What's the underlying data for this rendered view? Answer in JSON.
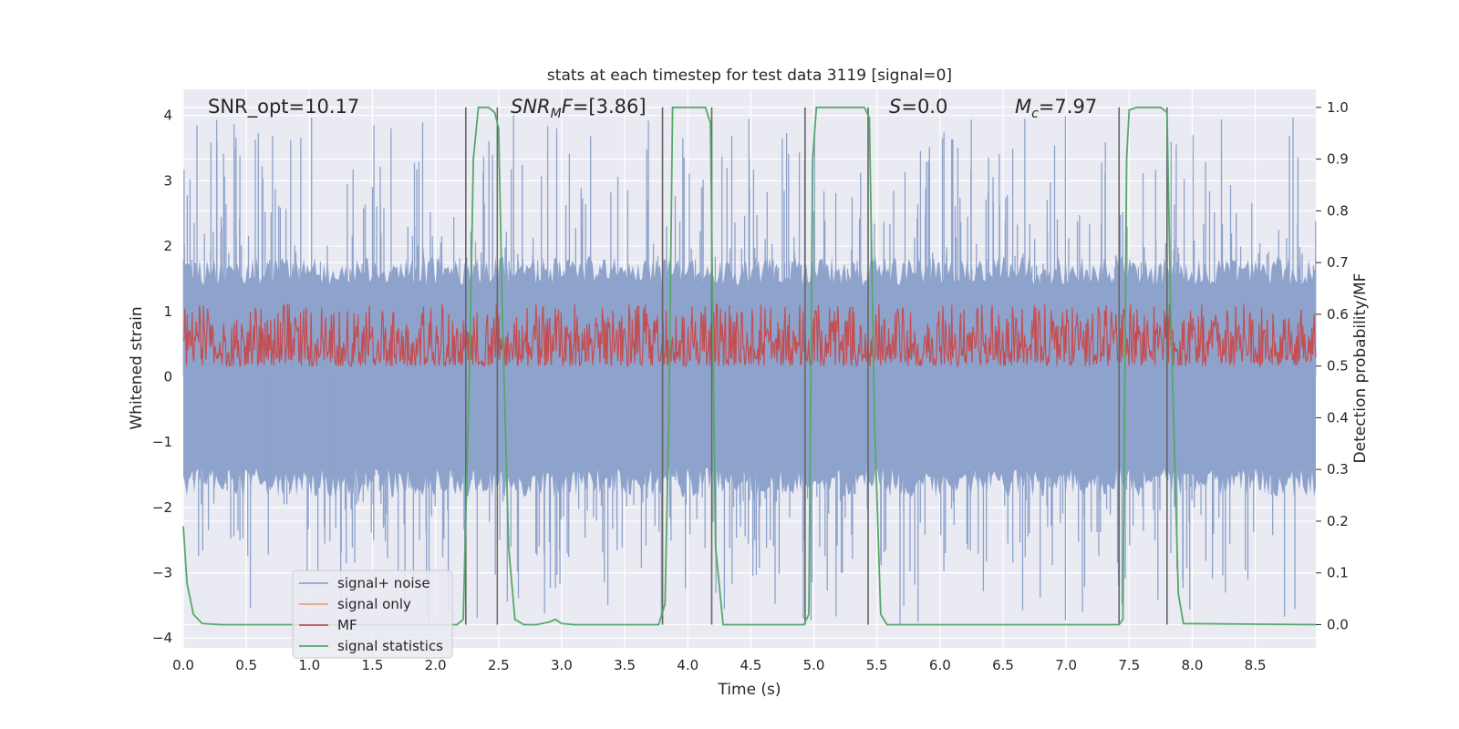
{
  "chart_data": {
    "type": "line",
    "title": "stats at each timestep for test data 3119 [signal=0]",
    "xlabel": "Time (s)",
    "ylabel": "Whitened strain",
    "y2label": "Detection probability/MF",
    "xlim": [
      0,
      8.98
    ],
    "ylim": [
      -4.15,
      4.4
    ],
    "y2lim": [
      -0.045,
      1.035
    ],
    "xticks": [
      "0.0",
      "0.5",
      "1.0",
      "1.5",
      "2.0",
      "2.5",
      "3.0",
      "3.5",
      "4.0",
      "4.5",
      "5.0",
      "5.5",
      "6.0",
      "6.5",
      "7.0",
      "7.5",
      "8.0",
      "8.5"
    ],
    "yticks": [
      "4",
      "3",
      "2",
      "1",
      "0",
      "−1",
      "−2",
      "−3",
      "−4"
    ],
    "y2ticks": [
      "1.0",
      "0.9",
      "0.8",
      "0.7",
      "0.6",
      "0.5",
      "0.4",
      "0.3",
      "0.2",
      "0.1",
      "0.0"
    ],
    "grid": true,
    "legend_position": "lower-left",
    "annotations": {
      "snr_opt": "SNR_opt=10.17",
      "snr_mf_italic": "SNR",
      "snr_mf_sub": "M",
      "snr_mf_italic2": "F",
      "snr_mf_value": "=[3.86]",
      "s_italic": "S",
      "s_value": "=0.0",
      "mc_italic": "M",
      "mc_sub": "c",
      "mc_value": "=7.97"
    },
    "series": [
      {
        "name": "signal+ noise",
        "color": "#8ea3cc",
        "axis": "left",
        "envelope_upper_mean": 1.6,
        "envelope_lower_mean": -1.6,
        "spike_max": 4.0,
        "spike_min": -3.8
      },
      {
        "name": "signal only",
        "color": "#e8a37f",
        "axis": "left",
        "values": []
      },
      {
        "name": "MF",
        "color": "#c44e52",
        "axis": "right",
        "baseline": 0.5,
        "range": [
          0.5,
          0.62
        ]
      },
      {
        "name": "signal statistics",
        "color": "#55a868",
        "axis": "right",
        "points": [
          [
            0.0,
            0.19
          ],
          [
            0.03,
            0.08
          ],
          [
            0.08,
            0.02
          ],
          [
            0.15,
            0.002
          ],
          [
            0.3,
            0.0
          ],
          [
            2.17,
            0.0
          ],
          [
            2.22,
            0.01
          ],
          [
            2.27,
            0.5
          ],
          [
            2.3,
            0.9
          ],
          [
            2.34,
            1.0
          ],
          [
            2.42,
            1.0
          ],
          [
            2.47,
            0.99
          ],
          [
            2.5,
            0.96
          ],
          [
            2.53,
            0.6
          ],
          [
            2.58,
            0.15
          ],
          [
            2.63,
            0.01
          ],
          [
            2.7,
            0.0
          ],
          [
            2.8,
            0.0
          ],
          [
            2.9,
            0.005
          ],
          [
            2.95,
            0.01
          ],
          [
            3.0,
            0.002
          ],
          [
            3.1,
            0.0
          ],
          [
            3.77,
            0.0
          ],
          [
            3.82,
            0.04
          ],
          [
            3.85,
            0.4
          ],
          [
            3.88,
            1.0
          ],
          [
            4.14,
            1.0
          ],
          [
            4.18,
            0.97
          ],
          [
            4.22,
            0.15
          ],
          [
            4.28,
            0.0
          ],
          [
            4.92,
            0.0
          ],
          [
            4.96,
            0.02
          ],
          [
            4.99,
            0.9
          ],
          [
            5.02,
            1.0
          ],
          [
            5.4,
            1.0
          ],
          [
            5.44,
            0.98
          ],
          [
            5.48,
            0.4
          ],
          [
            5.53,
            0.02
          ],
          [
            5.58,
            0.0
          ],
          [
            7.42,
            0.0
          ],
          [
            7.45,
            0.01
          ],
          [
            7.48,
            0.9
          ],
          [
            7.5,
            0.995
          ],
          [
            7.56,
            1.0
          ],
          [
            7.75,
            1.0
          ],
          [
            7.8,
            0.99
          ],
          [
            7.83,
            0.6
          ],
          [
            7.89,
            0.06
          ],
          [
            7.93,
            0.002
          ],
          [
            8.98,
            0.0
          ]
        ]
      }
    ],
    "detection_markers": [
      2.24,
      2.49,
      3.8,
      4.19,
      4.93,
      5.43,
      7.42,
      7.8
    ],
    "marker_color": "#666666"
  }
}
